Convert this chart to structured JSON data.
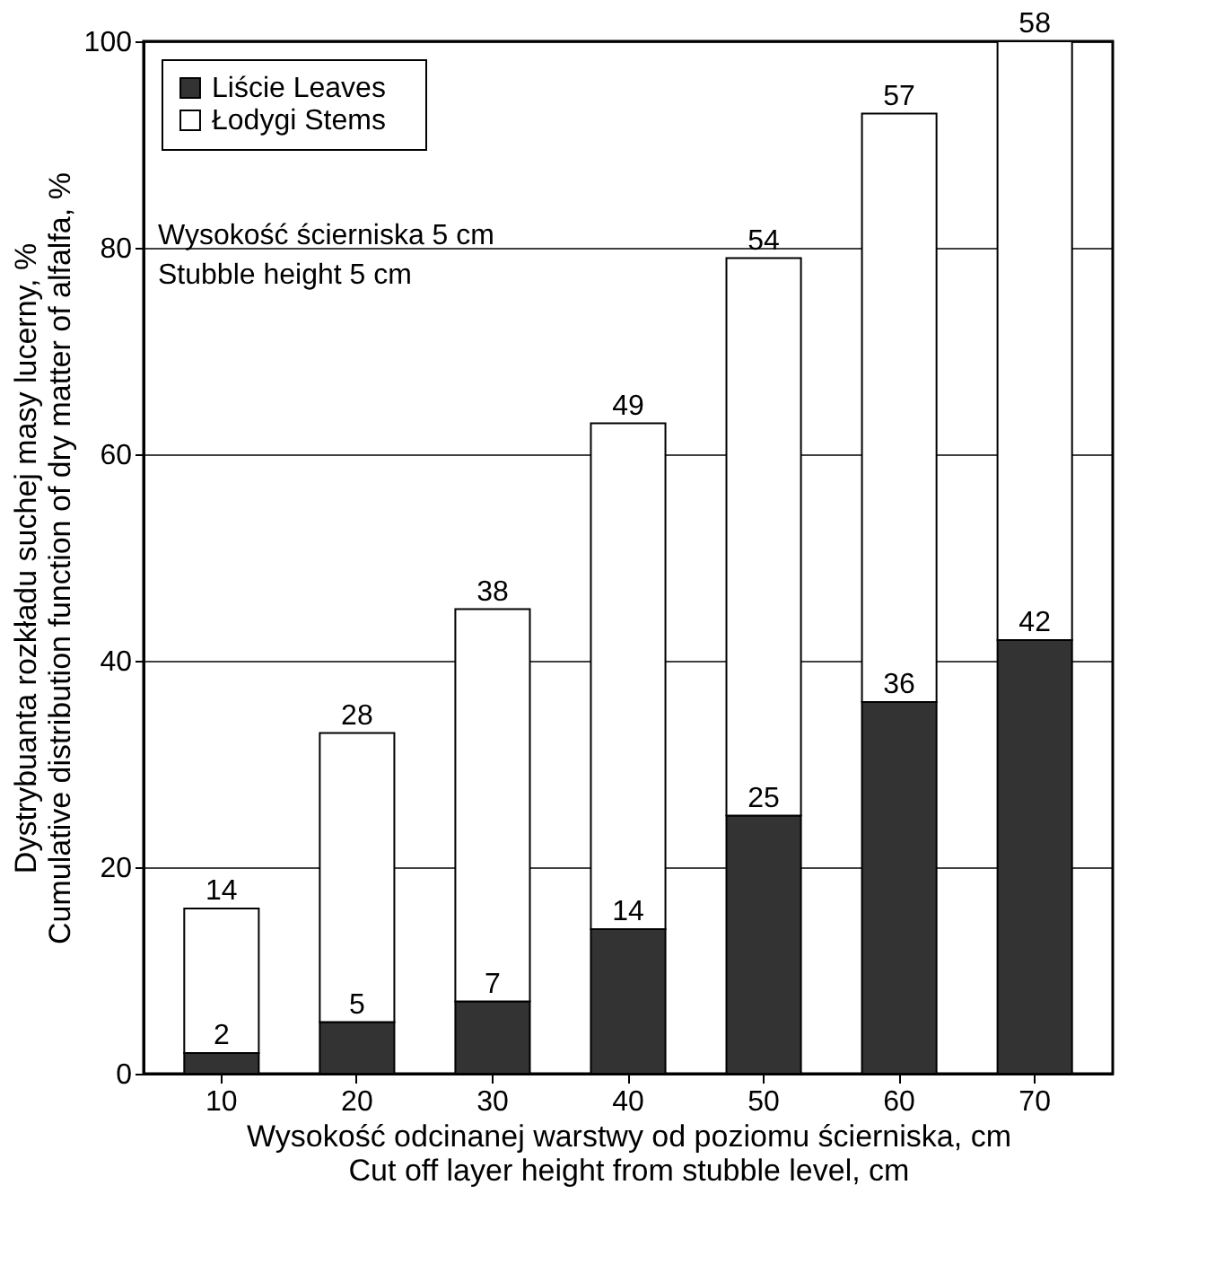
{
  "chart_data": {
    "type": "bar",
    "stacked": true,
    "categories": [
      "10",
      "20",
      "30",
      "40",
      "50",
      "60",
      "70"
    ],
    "series": [
      {
        "name": "Liście    Leaves",
        "color": "#333333",
        "values": [
          2,
          5,
          7,
          14,
          25,
          36,
          42
        ]
      },
      {
        "name": "Łodygi    Stems",
        "color": "#ffffff",
        "values": [
          14,
          28,
          38,
          49,
          54,
          57,
          58
        ]
      }
    ],
    "ylim": [
      0,
      100
    ],
    "yticks": [
      0,
      20,
      40,
      60,
      80,
      100
    ],
    "grid": "y",
    "legend": "top left",
    "data_labels": true,
    "xlabel": "Wysokość odcinanej warstwy od poziomu ścierniska, cm\nCut off layer height from stubble level, cm",
    "ylabel": "Dystrybuanta rozkładu suchej masy lucerny, %\nCumulative distribution function of dry matter of alfalfa, %",
    "annotations": [
      "Wysokość ścierniska 5 cm\nStubble height 5 cm"
    ]
  }
}
